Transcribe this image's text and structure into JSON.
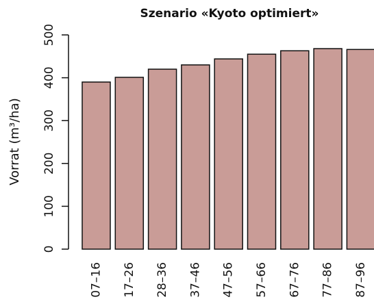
{
  "chart_data": {
    "type": "bar",
    "title": "Szenario «Kyoto optimiert»",
    "y_label": "Vorrat (m³/ha)",
    "categories": [
      "07–16",
      "17–26",
      "28–36",
      "37–46",
      "47–56",
      "57–66",
      "67–76",
      "77–86",
      "87–96"
    ],
    "values": [
      390,
      401,
      420,
      430,
      444,
      455,
      463,
      468,
      466
    ],
    "color": "#c99c97",
    "ylim": [
      0,
      500
    ],
    "yticks": [
      0,
      100,
      200,
      300,
      400,
      500
    ],
    "grid": false
  }
}
